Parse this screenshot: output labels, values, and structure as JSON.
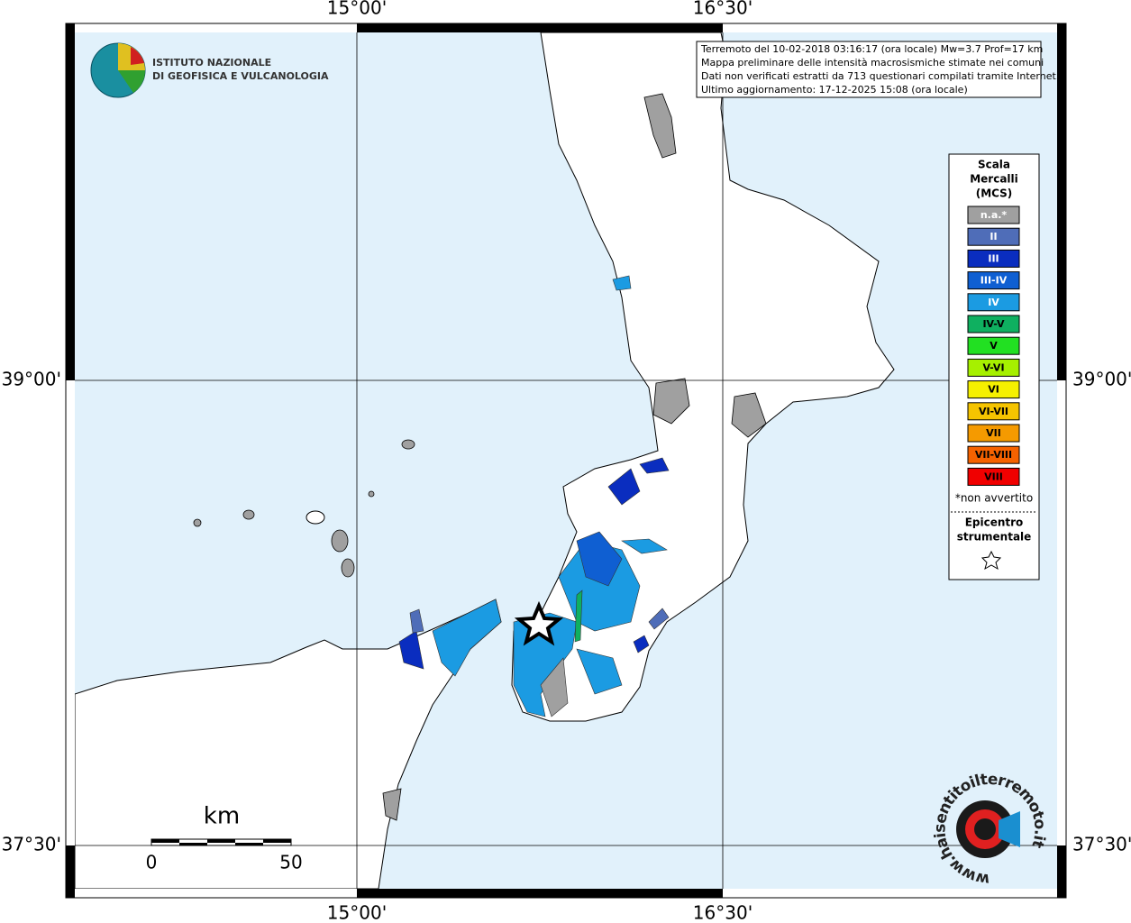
{
  "map": {
    "lon_labels": [
      "15°00'",
      "16°30'"
    ],
    "lat_labels": [
      "39°00'",
      "37°30'"
    ],
    "info_lines": [
      "Terremoto del 10-02-2018 03:16:17 (ora locale) Mw=3.7 Prof=17 km",
      "Mappa preliminare delle intensità macrosismiche stimate nei comuni",
      "Dati non verificati estratti da 713 questionari compilati tramite Internet.",
      "Ultimo aggiornamento: 17-12-2025 15:08 (ora locale)"
    ],
    "logo_lines": [
      "ISTITUTO NAZIONALE",
      "DI GEOFISICA E VULCANOLOGIA"
    ],
    "legend": {
      "title": [
        "Scala",
        "Mercalli",
        "(MCS)"
      ],
      "items": [
        {
          "label": "n.a.*",
          "color": "#a0a0a0",
          "text_color": "#ffffff"
        },
        {
          "label": "II",
          "color": "#4f6db8",
          "text_color": "#ffffff"
        },
        {
          "label": "III",
          "color": "#0a2dbf",
          "text_color": "#ffffff"
        },
        {
          "label": "III-IV",
          "color": "#0f5fd2",
          "text_color": "#ffffff"
        },
        {
          "label": "IV",
          "color": "#1b9be2",
          "text_color": "#ffffff"
        },
        {
          "label": "IV-V",
          "color": "#0fb060",
          "text_color": "#000000"
        },
        {
          "label": "V",
          "color": "#22e022",
          "text_color": "#000000"
        },
        {
          "label": "V-VI",
          "color": "#a6f000",
          "text_color": "#000000"
        },
        {
          "label": "VI",
          "color": "#f5f000",
          "text_color": "#000000"
        },
        {
          "label": "VI-VII",
          "color": "#f5c400",
          "text_color": "#000000"
        },
        {
          "label": "VII",
          "color": "#f59a00",
          "text_color": "#000000"
        },
        {
          "label": "VII-VIII",
          "color": "#f56200",
          "text_color": "#000000"
        },
        {
          "label": "VIII",
          "color": "#f00000",
          "text_color": "#000000"
        }
      ],
      "note": "*non avvertito",
      "epicenter": [
        "Epicentro",
        "strumentale"
      ]
    },
    "scale": {
      "unit": "km",
      "ticks": [
        "0",
        "50"
      ]
    },
    "watermark": "www.haisentitoilterremoto.it"
  }
}
